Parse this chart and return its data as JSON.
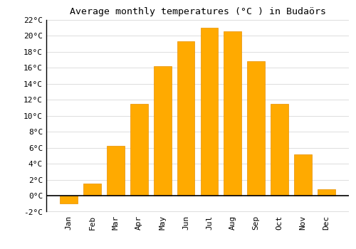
{
  "title": "Average monthly temperatures (°C ) in Budaörs",
  "months": [
    "Jan",
    "Feb",
    "Mar",
    "Apr",
    "May",
    "Jun",
    "Jul",
    "Aug",
    "Sep",
    "Oct",
    "Nov",
    "Dec"
  ],
  "values": [
    -1.0,
    1.5,
    6.2,
    11.5,
    16.2,
    19.3,
    21.0,
    20.6,
    16.8,
    11.5,
    5.2,
    0.8
  ],
  "bar_color": "#FFAA00",
  "bar_edge_color": "#E89000",
  "background_color": "#FFFFFF",
  "grid_color": "#DDDDDD",
  "ylim": [
    -2,
    22
  ],
  "yticks": [
    -2,
    0,
    2,
    4,
    6,
    8,
    10,
    12,
    14,
    16,
    18,
    20,
    22
  ],
  "title_fontsize": 9.5,
  "tick_fontsize": 8
}
